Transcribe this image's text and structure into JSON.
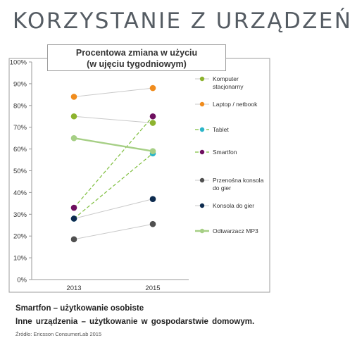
{
  "header": {
    "title": "KORZYSTANIE Z URZĄDZEŃ"
  },
  "chart_data": {
    "type": "line",
    "title_line1": "Procentowa zmiana w użyciu",
    "title_line2": "(w ujęciu tygodniowym)",
    "x": [
      "2013",
      "2015"
    ],
    "y_ticks": [
      "0%",
      "10%",
      "20%",
      "30%",
      "40%",
      "50%",
      "60%",
      "70%",
      "80%",
      "90%",
      "100%"
    ],
    "ylim": [
      0,
      100
    ],
    "grid": false,
    "legend_position": "right",
    "series": [
      {
        "name_lines": [
          "Komputer",
          "stacjonarny"
        ],
        "values": [
          75,
          72
        ],
        "color": "#8db32e",
        "line": "solid-gray"
      },
      {
        "name_lines": [
          "Laptop / netbook"
        ],
        "values": [
          84,
          88
        ],
        "color": "#f08c1e",
        "line": "solid-gray"
      },
      {
        "name_lines": [
          "Tablet"
        ],
        "values": [
          28,
          58
        ],
        "color": "#2bb5c9",
        "line": "dashed-green"
      },
      {
        "name_lines": [
          "Smartfon"
        ],
        "values": [
          33,
          75
        ],
        "color": "#6e0f5f",
        "line": "dashed-green"
      },
      {
        "name_lines": [
          "Przenośna konsola",
          "do gier"
        ],
        "values": [
          18.5,
          25.5
        ],
        "color": "#505050",
        "line": "solid-gray"
      },
      {
        "name_lines": [
          "Konsola do gier"
        ],
        "values": [
          28,
          37
        ],
        "color": "#0d2b4f",
        "line": "solid-gray"
      },
      {
        "name_lines": [
          "Odtwarzacz MP3"
        ],
        "values": [
          65,
          59
        ],
        "color": "#a6cf85",
        "line": "bold-green"
      }
    ]
  },
  "footer": {
    "line1": "Smartfon – użytkowanie osobiste",
    "line2": "Inne urządzenia – użytkowanie w gospodarstwie domowym.",
    "source": "Źródło: Ericsson ConsumerLab 2015"
  }
}
